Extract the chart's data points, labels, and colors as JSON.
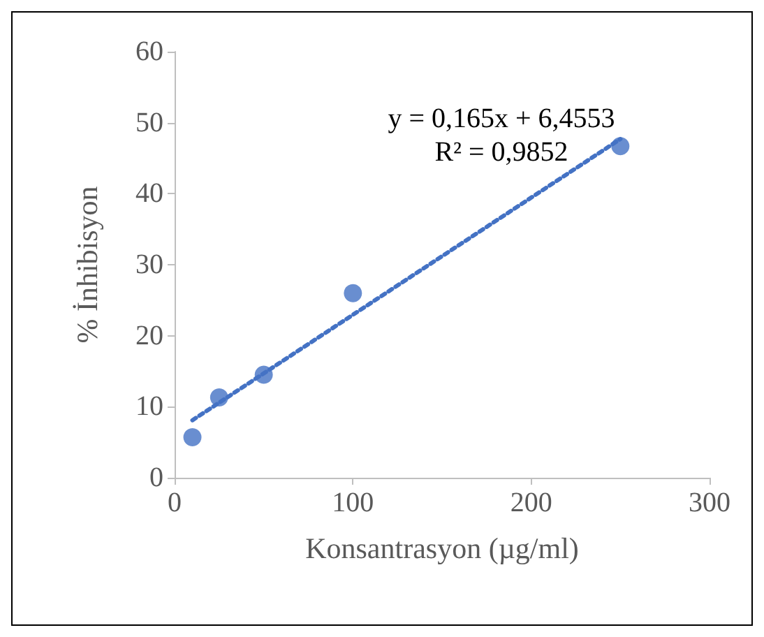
{
  "chart_data": {
    "type": "scatter",
    "xlabel": "Konsantrasyon (µg/ml)",
    "ylabel": "% İnhibisyon",
    "xlim": [
      0,
      300
    ],
    "xticks": [
      0,
      100,
      200,
      300
    ],
    "ylim": [
      0,
      60
    ],
    "yticks": [
      0,
      10,
      20,
      30,
      40,
      50,
      60
    ],
    "grid": false,
    "marker": "circle",
    "annotations": [
      "y = 0,165x + 6,4553",
      "R² = 0,9852"
    ],
    "series": [
      {
        "color": "#4472c4",
        "x": [
          10,
          25,
          50,
          100,
          250
        ],
        "values": [
          5.7,
          11.3,
          14.5,
          26,
          46.7
        ]
      },
      {
        "type": "line",
        "color": "#4472c4",
        "line_style": "dotted",
        "marker": "none",
        "x": [
          10,
          250
        ],
        "values": [
          8.1,
          47.7
        ]
      }
    ]
  }
}
